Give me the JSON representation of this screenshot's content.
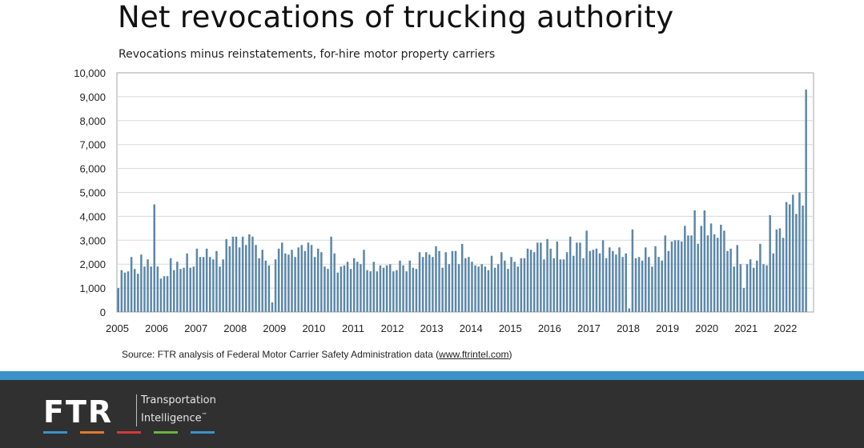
{
  "chart_data": {
    "type": "bar",
    "title": "Net revocations of trucking authority",
    "subtitle": "Revocations minus reinstatements, for-hire motor property carriers",
    "xlabel": "",
    "ylabel": "",
    "ylim": [
      0,
      10000
    ],
    "yticks": [
      "0",
      "1,000",
      "2,000",
      "3,000",
      "4,000",
      "5,000",
      "6,000",
      "7,000",
      "8,000",
      "9,000",
      "10,000"
    ],
    "xtick_labels": [
      "2005",
      "2006",
      "2007",
      "2008",
      "2009",
      "2010",
      "2011",
      "2012",
      "2013",
      "2014",
      "2015",
      "2016",
      "2017",
      "2018",
      "2019",
      "2020",
      "2021",
      "2022"
    ],
    "start": "2005-01",
    "grid": true,
    "bar_color": "#5b87a8",
    "values": [
      1000,
      1750,
      1650,
      1700,
      2300,
      1800,
      1600,
      2400,
      1900,
      2200,
      1900,
      4500,
      1900,
      1400,
      1500,
      1500,
      2250,
      1750,
      2100,
      1800,
      1850,
      2450,
      1850,
      1900,
      2650,
      2300,
      2300,
      2650,
      2300,
      2200,
      2550,
      1900,
      2200,
      3050,
      2750,
      3150,
      3150,
      2700,
      3150,
      2800,
      3250,
      3150,
      2800,
      2250,
      2600,
      2150,
      1950,
      400,
      2200,
      2650,
      2900,
      2450,
      2400,
      2600,
      2300,
      2700,
      2800,
      2550,
      2900,
      2800,
      2300,
      2650,
      2500,
      1900,
      1800,
      3150,
      2450,
      1650,
      1900,
      1950,
      2100,
      1800,
      2250,
      2100,
      2000,
      2600,
      1750,
      1700,
      2100,
      1700,
      1950,
      1850,
      1950,
      2000,
      1700,
      1750,
      2150,
      1950,
      1700,
      2150,
      1850,
      1800,
      2500,
      2300,
      2500,
      2400,
      2300,
      2750,
      2550,
      1850,
      2500,
      2000,
      2550,
      2550,
      2000,
      2850,
      2250,
      2300,
      2100,
      1950,
      1900,
      2000,
      1900,
      1750,
      2350,
      1850,
      2000,
      2500,
      2150,
      1800,
      2300,
      2100,
      1900,
      2250,
      2250,
      2650,
      2600,
      2500,
      2900,
      2900,
      2200,
      3050,
      2650,
      2250,
      2950,
      2200,
      2200,
      2500,
      3150,
      2350,
      2900,
      2900,
      2250,
      3400,
      2550,
      2600,
      2650,
      2450,
      3000,
      2250,
      2700,
      2550,
      2400,
      2700,
      2300,
      2450,
      150,
      3450,
      2250,
      2300,
      2150,
      2700,
      2300,
      1900,
      2750,
      2300,
      2150,
      3200,
      2550,
      2950,
      3000,
      3000,
      2950,
      3600,
      3200,
      3200,
      4250,
      2850,
      3600,
      4250,
      3200,
      3700,
      3250,
      3100,
      3650,
      3400,
      2550,
      2650,
      1900,
      2800,
      2000,
      1000,
      2000,
      2200,
      1850,
      2150,
      2850,
      2000,
      1950,
      4050,
      2450,
      3450,
      3500,
      3100,
      4600,
      4500,
      4900,
      4100,
      5000,
      4450,
      9300
    ]
  },
  "source": {
    "prefix": "Source:  FTR analysis of Federal Motor Carrier Safety Administration data (",
    "url": "www.ftrintel.com",
    "suffix": ")"
  },
  "footer": {
    "logo_text": "FTR",
    "tagline_line1": "Transportation",
    "tagline_line2": "Intelligence",
    "tagline_mark": "™",
    "stripe_color": "#3a93c8",
    "background_color": "#303030",
    "logo_bar_colors": [
      "#3a93c8",
      "#e27a2f",
      "#d23a3a",
      "#6cb33f",
      "#3a93c8"
    ]
  }
}
